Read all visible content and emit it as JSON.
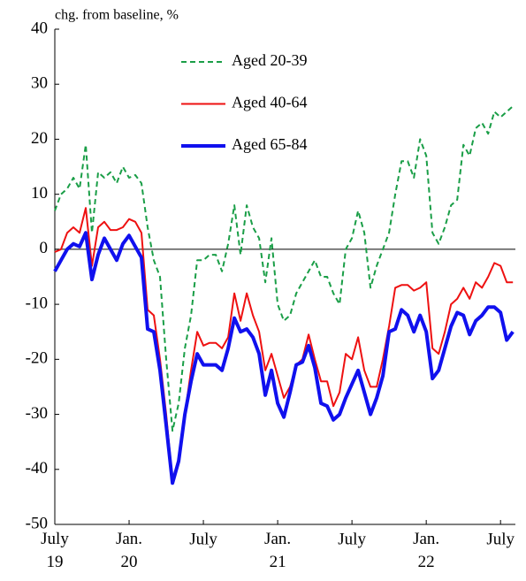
{
  "chart_data": {
    "type": "line",
    "y_axis_label": "chg. from baseline, %",
    "x": [
      0,
      0.5,
      1,
      1.5,
      2,
      2.5,
      3,
      3.5,
      4,
      4.5,
      5,
      5.5,
      6,
      6.5,
      7,
      7.5,
      8,
      8.5,
      9,
      9.5,
      10,
      10.5,
      11,
      11.5,
      12,
      12.5,
      13,
      13.5,
      14,
      14.5,
      15,
      15.5,
      16,
      16.5,
      17,
      17.5,
      18,
      18.5,
      19,
      19.5,
      20,
      20.5,
      21,
      21.5,
      22,
      22.5,
      23,
      23.5,
      24,
      24.5,
      25,
      25.5,
      26,
      26.5,
      27,
      27.5,
      28,
      28.5,
      29,
      29.5,
      30,
      30.5,
      31,
      31.5,
      32,
      32.5,
      33,
      33.5,
      34,
      34.5,
      35,
      35.5,
      36,
      36.5,
      37
    ],
    "series": [
      {
        "name": "Aged 20-39",
        "color": "#1a9e47",
        "line_style": "dashed",
        "line_width": 2,
        "values": [
          7,
          10,
          11,
          13,
          11,
          19,
          3,
          14,
          13,
          14,
          12,
          15,
          13,
          13.5,
          12,
          4,
          -2,
          -5,
          -20,
          -33,
          -28,
          -18,
          -12,
          -2,
          -2,
          -1,
          -1,
          -4,
          1,
          8,
          -1,
          8,
          4,
          2,
          -6,
          2,
          -10,
          -13,
          -12,
          -8,
          -6,
          -4,
          -2,
          -5,
          -5,
          -8,
          -10,
          0,
          2,
          7,
          3,
          -7,
          -3,
          0,
          3,
          10,
          16,
          16,
          13,
          20,
          17,
          3,
          1,
          4,
          8,
          9,
          19,
          17,
          22,
          23,
          21,
          25,
          24,
          25,
          26
        ]
      },
      {
        "name": "Aged 40-64",
        "color": "#ee1111",
        "line_style": "solid",
        "line_width": 2,
        "values": [
          -0.5,
          0,
          3,
          4,
          3,
          7.5,
          -3,
          4,
          5,
          3.5,
          3.5,
          4,
          5.5,
          5,
          3,
          -11,
          -12,
          -20,
          -30,
          -42,
          -38,
          -30,
          -22,
          -15,
          -17.5,
          -17,
          -17,
          -18,
          -16,
          -8,
          -13,
          -8,
          -12,
          -15,
          -22,
          -19,
          -23,
          -27,
          -25,
          -21,
          -20,
          -15.5,
          -20,
          -24,
          -24,
          -28.5,
          -26,
          -19,
          -20,
          -16,
          -22,
          -25,
          -25,
          -20,
          -14,
          -7,
          -6.5,
          -6.5,
          -7.5,
          -7,
          -6,
          -18,
          -19,
          -15,
          -10,
          -9,
          -7,
          -9,
          -6,
          -7,
          -5,
          -2.5,
          -3,
          -6,
          -6
        ]
      },
      {
        "name": "Aged 65-84",
        "color": "#1010ee",
        "line_style": "solid",
        "line_width": 4,
        "values": [
          -4,
          -2,
          0,
          1,
          0.5,
          3,
          -5.5,
          -1,
          2,
          0,
          -2,
          1,
          2.5,
          0.5,
          -1.5,
          -14.5,
          -15,
          -22,
          -32,
          -42.5,
          -38.5,
          -30,
          -24,
          -19,
          -21,
          -21,
          -21,
          -22,
          -18,
          -12.5,
          -15,
          -14.5,
          -16,
          -19,
          -26.5,
          -22,
          -28,
          -30.5,
          -26,
          -21,
          -20.5,
          -17.5,
          -21.5,
          -28,
          -28.5,
          -31,
          -30,
          -27,
          -24.5,
          -22,
          -26,
          -30,
          -27,
          -23,
          -15,
          -14.5,
          -11,
          -12,
          -15,
          -12,
          -15,
          -23.5,
          -22,
          -18,
          -14,
          -11.5,
          -12,
          -15.5,
          -13,
          -12,
          -10.5,
          -10.5,
          -11.5,
          -16.5,
          -15
        ]
      }
    ],
    "xlim": [
      0,
      37.2
    ],
    "xticks": [
      {
        "value": 0,
        "label": "July 19"
      },
      {
        "value": 6,
        "label": "Jan. 20"
      },
      {
        "value": 12,
        "label": "July"
      },
      {
        "value": 18,
        "label": "Jan. 21"
      },
      {
        "value": 24,
        "label": "July"
      },
      {
        "value": 30,
        "label": "Jan. 22"
      },
      {
        "value": 36,
        "label": "July"
      }
    ],
    "ylim": [
      -50,
      40
    ],
    "yticks": [
      -50,
      -40,
      -30,
      -20,
      -10,
      0,
      10,
      20,
      30,
      40
    ],
    "zero_line": true,
    "grid": false
  }
}
